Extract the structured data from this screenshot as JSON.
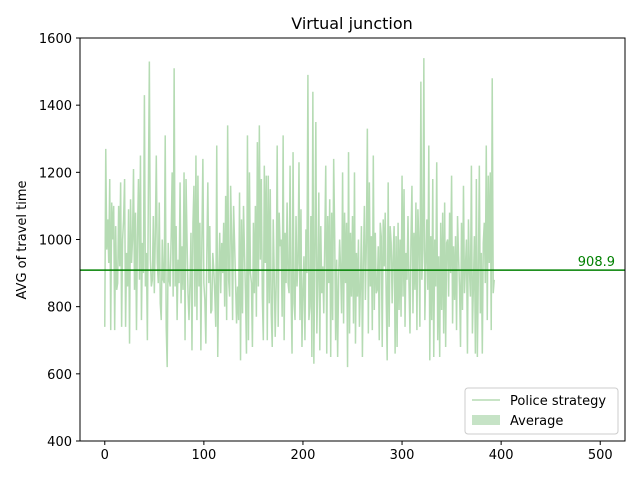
{
  "chart_data": {
    "type": "line",
    "title": "Virtual junction",
    "xlabel": "",
    "ylabel": "AVG of travel time",
    "xlim": [
      -25,
      525
    ],
    "ylim": [
      400,
      1600
    ],
    "xticks": [
      0,
      100,
      200,
      300,
      400,
      500
    ],
    "yticks": [
      400,
      600,
      800,
      1000,
      1200,
      1400,
      1600
    ],
    "grid": false,
    "legend_position": "lower-right",
    "series": [
      {
        "name": "Police strategy",
        "color": "#b5dbb3",
        "x_start": 0,
        "x_step": 1,
        "values": [
          740,
          1270,
          970,
          1060,
          930,
          1180,
          730,
          1110,
          1000,
          1100,
          730,
          1040,
          850,
          870,
          1100,
          920,
          1170,
          740,
          1000,
          1060,
          1180,
          740,
          960,
          860,
          1090,
          690,
          1120,
          930,
          1000,
          1210,
          850,
          1080,
          730,
          1010,
          1180,
          880,
          1250,
          760,
          990,
          900,
          1430,
          860,
          960,
          700,
          1150,
          1530,
          940,
          860,
          880,
          1070,
          840,
          1010,
          1250,
          930,
          870,
          1110,
          810,
          760,
          1000,
          880,
          870,
          1310,
          740,
          620,
          990,
          880,
          860,
          1010,
          1200,
          830,
          1510,
          860,
          1040,
          760,
          940,
          870,
          1170,
          810,
          980,
          850,
          1200,
          700,
          1180,
          1000,
          840,
          760,
          870,
          1020,
          670,
          1050,
          1160,
          800,
          1250,
          760,
          1190,
          860,
          1050,
          670,
          1000,
          1240,
          870,
          820,
          690,
          960,
          1170,
          870,
          1040,
          780,
          790,
          960,
          910,
          840,
          740,
          1280,
          650,
          890,
          1020,
          840,
          990,
          900,
          1050,
          800,
          1130,
          760,
          1340,
          880,
          830,
          1160,
          1010,
          760,
          1100,
          990,
          870,
          750,
          860,
          760,
          1140,
          640,
          1060,
          780,
          1100,
          960,
          840,
          660,
          1310,
          700,
          1200,
          900,
          870,
          680,
          1050,
          840,
          1100,
          770,
          1290,
          860,
          1340,
          940,
          1180,
          830,
          700,
          1220,
          930,
          1190,
          700,
          1190,
          810,
          1150,
          780,
          680,
          1060,
          900,
          710,
          870,
          1280,
          740,
          1080,
          980,
          1000,
          770,
          1310,
          700,
          1020,
          870,
          1110,
          870,
          840,
          1220,
          840,
          660,
          1260,
          810,
          760,
          1070,
          860,
          930,
          1230,
          760,
          1090,
          680,
          840,
          950,
          700,
          1030,
          900,
          1490,
          760,
          800,
          1070,
          650,
          1440,
          630,
          960,
          1350,
          720,
          880,
          1140,
          670,
          1040,
          840,
          920,
          780,
          990,
          1220,
          660,
          1070,
          870,
          1120,
          650,
          1080,
          760,
          1240,
          1020,
          700,
          940,
          650,
          880,
          1000,
          910,
          780,
          1200,
          750,
          1080,
          870,
          1050,
          620,
          1260,
          720,
          1020,
          830,
          1070,
          750,
          1200,
          690,
          960,
          830,
          1000,
          740,
          860,
          1040,
          650,
          930,
          1100,
          820,
          990,
          1330,
          720,
          1170,
          860,
          1010,
          730,
          1250,
          790,
          1020,
          840,
          850,
          980,
          700,
          1050,
          1010,
          680,
          1060,
          920,
          1080,
          830,
          640,
          1170,
          740,
          1040,
          990,
          810,
          950,
          1040,
          660,
          1010,
          680,
          1050,
          790,
          1000,
          770,
          1190,
          830,
          1150,
          740,
          960,
          880,
          1070,
          870,
          720,
          1000,
          1160,
          780,
          1020,
          850,
          1110,
          730,
          1090,
          990,
          740,
          1470,
          880,
          970,
          1540,
          760,
          920,
          1060,
          850,
          1280,
          640,
          1010,
          760,
          1180,
          650,
          1000,
          860,
          1230,
          700,
          950,
          650,
          1050,
          790,
          1080,
          720,
          1110,
          680,
          990,
          1000,
          830,
          1080,
          900,
          1190,
          750,
          980,
          820,
          1010,
          730,
          1070,
          950,
          860,
          680,
          1050,
          790,
          1160,
          840,
          920,
          1000,
          660,
          1060,
          910,
          830,
          1220,
          720,
          860,
          1010,
          660,
          1180,
          650,
          900,
          1220,
          780,
          960,
          660,
          990,
          1050,
          870,
          1280,
          760,
          1190,
          930,
          1200,
          730,
          1480,
          840,
          880
        ]
      },
      {
        "name": "Average",
        "color": "#008000",
        "value": 908.9,
        "label": "908.9"
      }
    ],
    "legend": [
      {
        "label": "Police strategy",
        "swatch": "line",
        "color": "#b5dbb3"
      },
      {
        "label": "Average",
        "swatch": "patch",
        "color": "#c6e3c6"
      }
    ]
  }
}
